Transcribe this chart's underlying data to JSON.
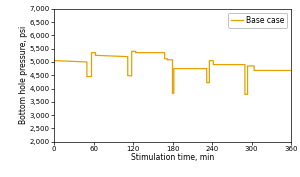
{
  "title": "",
  "xlabel": "Stimulation time, min",
  "ylabel": "Bottom hole pressure, psi",
  "xlim": [
    0,
    360
  ],
  "ylim": [
    2000,
    7000
  ],
  "xticks": [
    0,
    60,
    120,
    180,
    240,
    300,
    360
  ],
  "yticks": [
    2000,
    2500,
    3000,
    3500,
    4000,
    4500,
    5000,
    5500,
    6000,
    6500,
    7000
  ],
  "line_color": "#E8A000",
  "legend_label": "Base case",
  "background_color": "#ffffff",
  "x": [
    0,
    1,
    1,
    50,
    50,
    57,
    57,
    63,
    63,
    112,
    112,
    118,
    118,
    124,
    124,
    168,
    168,
    172,
    172,
    180,
    180,
    182,
    182,
    232,
    232,
    236,
    236,
    242,
    242,
    290,
    290,
    294,
    294,
    304,
    304,
    360
  ],
  "y": [
    5100,
    5050,
    5050,
    5000,
    4450,
    4450,
    5350,
    5350,
    5250,
    5200,
    4480,
    4480,
    5400,
    5400,
    5350,
    5350,
    5120,
    5120,
    5080,
    5080,
    3820,
    3820,
    4750,
    4750,
    4220,
    4220,
    5050,
    5050,
    4900,
    4900,
    3780,
    3780,
    4850,
    4850,
    4680,
    4680
  ]
}
